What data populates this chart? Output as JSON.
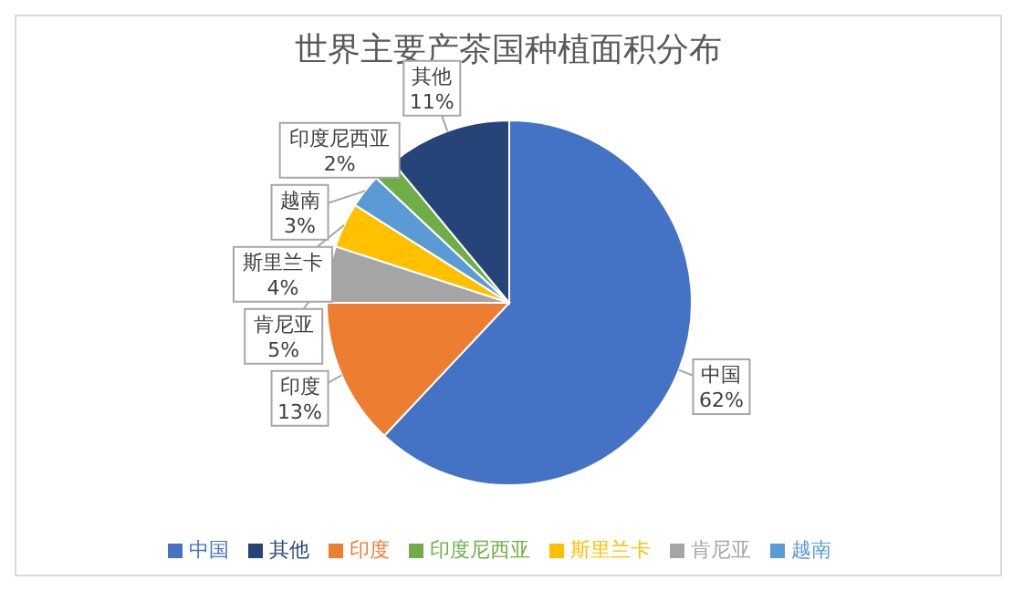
{
  "chart_data": {
    "type": "pie",
    "title": "世界主要产茶国种植面积分布",
    "categories": [
      "中国",
      "印度",
      "肯尼亚",
      "斯里兰卡",
      "越南",
      "印度尼西亚",
      "其他"
    ],
    "values": [
      62,
      13,
      5,
      4,
      3,
      2,
      11
    ],
    "value_labels": [
      "62%",
      "13%",
      "5%",
      "4%",
      "3%",
      "2%",
      "11%"
    ],
    "colors": [
      "#4472c4",
      "#ed7d31",
      "#a5a5a5",
      "#ffc000",
      "#5b9bd5",
      "#70ad47",
      "#264478"
    ],
    "legend": "bottom"
  }
}
